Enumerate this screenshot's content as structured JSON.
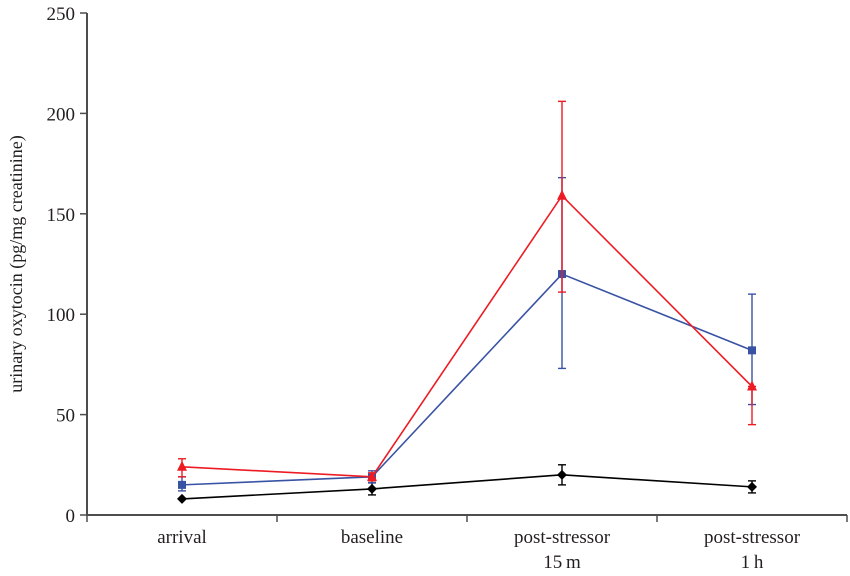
{
  "chart_data": {
    "type": "line",
    "title": "",
    "xlabel": "",
    "ylabel": "urinary oxytocin (pg/mg creatinine)",
    "ylim": [
      0,
      250
    ],
    "yticks": [
      0,
      50,
      100,
      150,
      200,
      250
    ],
    "ytick_labels": [
      "0",
      "50",
      "100",
      "150",
      "200",
      "250"
    ],
    "grid": false,
    "legend": "none",
    "categories": [
      [
        "arrival"
      ],
      [
        "baseline"
      ],
      [
        "post-stressor",
        "15 m"
      ],
      [
        "post-stressor",
        "1 h"
      ]
    ],
    "series": [
      {
        "name": "black-diamond",
        "color": "#000000",
        "marker": "diamond",
        "values": [
          8,
          13,
          20,
          14
        ],
        "err_low": [
          8,
          10,
          15,
          11
        ],
        "err_high": [
          8,
          16,
          25,
          17
        ]
      },
      {
        "name": "blue-square",
        "color": "#3953a4",
        "marker": "square",
        "values": [
          15,
          19,
          120,
          82
        ],
        "err_low": [
          12,
          16,
          73,
          55
        ],
        "err_high": [
          19,
          22,
          168,
          110
        ]
      },
      {
        "name": "red-triangle",
        "color": "#ed1c24",
        "marker": "triangle",
        "values": [
          24,
          19,
          159,
          64
        ],
        "err_low": [
          19,
          17,
          111,
          45
        ],
        "err_high": [
          28,
          21,
          206,
          64
        ]
      }
    ]
  }
}
